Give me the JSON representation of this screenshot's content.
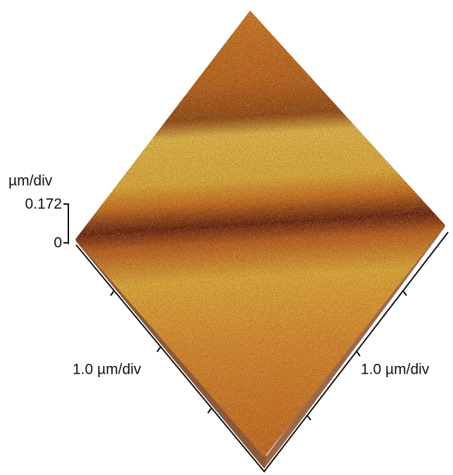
{
  "z_axis": {
    "label": "µm/div",
    "ticks": [
      0.172,
      0
    ]
  },
  "x_axis": {
    "label": "1.0 µm/div"
  },
  "y_axis": {
    "label": "1.0 µm/div"
  }
}
